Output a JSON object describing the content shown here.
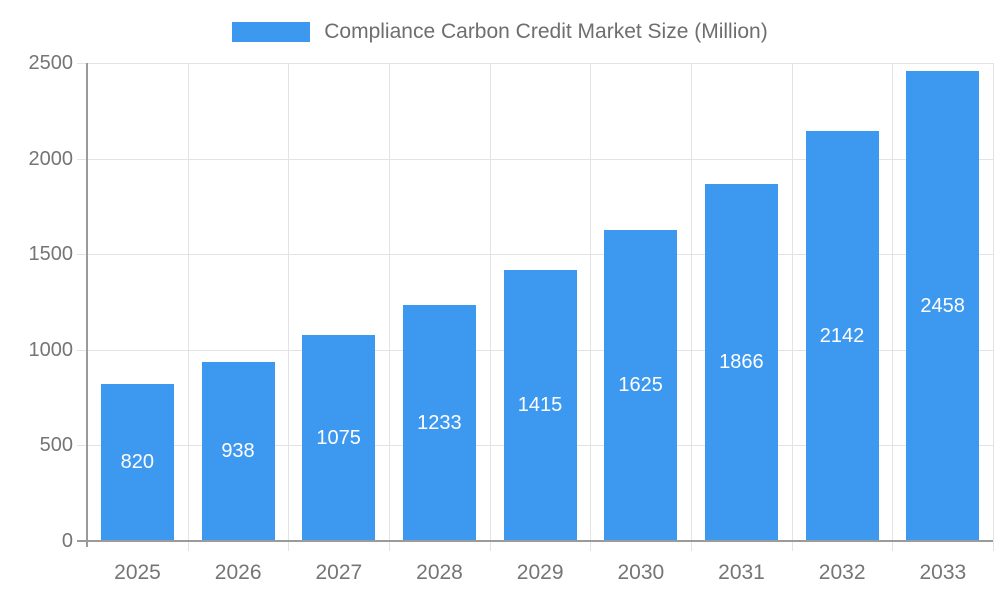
{
  "legend": {
    "label": "Compliance Carbon Credit Market Size (Million)"
  },
  "chart_data": {
    "type": "bar",
    "title": "Compliance Carbon Credit Market Size (Million)",
    "categories": [
      "2025",
      "2026",
      "2027",
      "2028",
      "2029",
      "2030",
      "2031",
      "2032",
      "2033"
    ],
    "values": [
      820,
      938,
      1075,
      1233,
      1415,
      1625,
      1866,
      2142,
      2458
    ],
    "series": [
      {
        "name": "Compliance Carbon Credit Market Size (Million)",
        "values": [
          820,
          938,
          1075,
          1233,
          1415,
          1625,
          1866,
          2142,
          2458
        ]
      }
    ],
    "xlabel": "",
    "ylabel": "",
    "ylim": [
      0,
      2500
    ],
    "yticks": [
      0,
      500,
      1000,
      1500,
      2000,
      2500
    ],
    "grid": true,
    "legend_position": "top",
    "value_labels": "inside-center"
  },
  "colors": {
    "bar": "#3d99f0",
    "grid": "#e3e3e3",
    "axis": "#9a9a9a",
    "tick_text": "#757575",
    "legend_text": "#6e6e6e",
    "value_text": "#ffffff",
    "background": "#ffffff"
  }
}
